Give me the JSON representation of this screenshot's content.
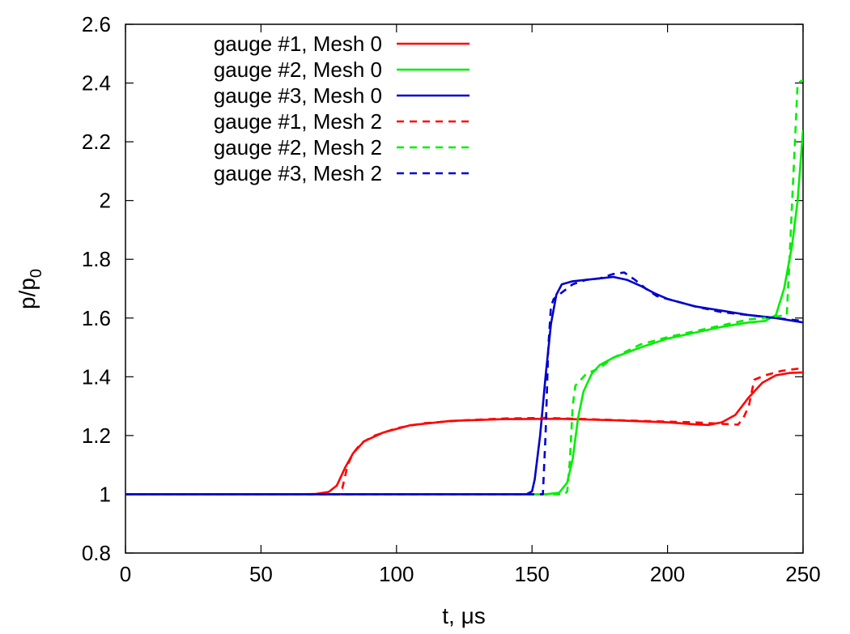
{
  "chart_data": {
    "type": "line",
    "xlabel": "t, μs",
    "ylabel": {
      "base": "p/p",
      "sub": "0"
    },
    "xlim": [
      0,
      250
    ],
    "ylim": [
      0.8,
      2.6
    ],
    "xticks": [
      "0",
      "50",
      "100",
      "150",
      "200",
      "250"
    ],
    "yticks": [
      "0.8",
      "1",
      "1.2",
      "1.4",
      "1.6",
      "1.8",
      "2",
      "2.2",
      "2.4",
      "2.6"
    ],
    "grid": false,
    "legend_position": "top-left",
    "series": [
      {
        "name": "gauge #1, Mesh 0",
        "color": "#ff0000",
        "dash": "solid",
        "points": [
          [
            0,
            1
          ],
          [
            65,
            1
          ],
          [
            70,
            1.001
          ],
          [
            75,
            1.008
          ],
          [
            78,
            1.03
          ],
          [
            81,
            1.09
          ],
          [
            84,
            1.14
          ],
          [
            88,
            1.18
          ],
          [
            95,
            1.21
          ],
          [
            105,
            1.235
          ],
          [
            120,
            1.25
          ],
          [
            140,
            1.256
          ],
          [
            160,
            1.257
          ],
          [
            180,
            1.252
          ],
          [
            200,
            1.245
          ],
          [
            210,
            1.238
          ],
          [
            215,
            1.236
          ],
          [
            220,
            1.245
          ],
          [
            225,
            1.27
          ],
          [
            230,
            1.33
          ],
          [
            235,
            1.38
          ],
          [
            240,
            1.405
          ],
          [
            245,
            1.413
          ],
          [
            250,
            1.415
          ]
        ]
      },
      {
        "name": "gauge #2, Mesh 0",
        "color": "#00ee00",
        "dash": "solid",
        "points": [
          [
            0,
            1
          ],
          [
            155,
            1
          ],
          [
            160,
            1.005
          ],
          [
            163,
            1.04
          ],
          [
            165,
            1.12
          ],
          [
            167,
            1.26
          ],
          [
            169,
            1.35
          ],
          [
            172,
            1.41
          ],
          [
            175,
            1.44
          ],
          [
            180,
            1.465
          ],
          [
            190,
            1.5
          ],
          [
            200,
            1.53
          ],
          [
            210,
            1.55
          ],
          [
            220,
            1.57
          ],
          [
            230,
            1.585
          ],
          [
            236,
            1.59
          ],
          [
            240,
            1.61
          ],
          [
            243,
            1.7
          ],
          [
            246,
            1.85
          ],
          [
            248,
            2.0
          ],
          [
            250,
            2.24
          ]
        ]
      },
      {
        "name": "gauge #3, Mesh 0",
        "color": "#0000cc",
        "dash": "solid",
        "points": [
          [
            0,
            1
          ],
          [
            148,
            1
          ],
          [
            150,
            1.01
          ],
          [
            151,
            1.05
          ],
          [
            153,
            1.2
          ],
          [
            155,
            1.4
          ],
          [
            157,
            1.58
          ],
          [
            159,
            1.68
          ],
          [
            161,
            1.715
          ],
          [
            165,
            1.725
          ],
          [
            170,
            1.73
          ],
          [
            175,
            1.735
          ],
          [
            180,
            1.74
          ],
          [
            185,
            1.73
          ],
          [
            190,
            1.71
          ],
          [
            195,
            1.685
          ],
          [
            200,
            1.665
          ],
          [
            210,
            1.64
          ],
          [
            220,
            1.625
          ],
          [
            230,
            1.61
          ],
          [
            240,
            1.6
          ],
          [
            250,
            1.585
          ]
        ]
      },
      {
        "name": "gauge #1, Mesh 2",
        "color": "#ff0000",
        "dash": "dashed",
        "points": [
          [
            0,
            1
          ],
          [
            79,
            1
          ],
          [
            80,
            1.02
          ],
          [
            82,
            1.1
          ],
          [
            84,
            1.14
          ],
          [
            87,
            1.175
          ],
          [
            92,
            1.2
          ],
          [
            100,
            1.225
          ],
          [
            110,
            1.242
          ],
          [
            125,
            1.252
          ],
          [
            140,
            1.258
          ],
          [
            155,
            1.26
          ],
          [
            170,
            1.256
          ],
          [
            190,
            1.25
          ],
          [
            210,
            1.245
          ],
          [
            220,
            1.24
          ],
          [
            226,
            1.237
          ],
          [
            228,
            1.26
          ],
          [
            230,
            1.3
          ],
          [
            232,
            1.39
          ],
          [
            236,
            1.405
          ],
          [
            242,
            1.42
          ],
          [
            250,
            1.43
          ]
        ]
      },
      {
        "name": "gauge #2, Mesh 2",
        "color": "#00ee00",
        "dash": "dashed",
        "points": [
          [
            0,
            1
          ],
          [
            162,
            1
          ],
          [
            163,
            1.01
          ],
          [
            164,
            1.12
          ],
          [
            165,
            1.3
          ],
          [
            166,
            1.37
          ],
          [
            170,
            1.41
          ],
          [
            175,
            1.43
          ],
          [
            180,
            1.465
          ],
          [
            190,
            1.51
          ],
          [
            200,
            1.535
          ],
          [
            210,
            1.555
          ],
          [
            220,
            1.575
          ],
          [
            230,
            1.595
          ],
          [
            240,
            1.605
          ],
          [
            244,
            1.61
          ],
          [
            245,
            1.8
          ],
          [
            246,
            2.0
          ],
          [
            247,
            2.2
          ],
          [
            248,
            2.4
          ],
          [
            250,
            2.41
          ]
        ]
      },
      {
        "name": "gauge #3, Mesh 2",
        "color": "#0000cc",
        "dash": "dashed",
        "points": [
          [
            0,
            1
          ],
          [
            154,
            1
          ],
          [
            155,
            1.2
          ],
          [
            156,
            1.5
          ],
          [
            157,
            1.64
          ],
          [
            158,
            1.665
          ],
          [
            160,
            1.68
          ],
          [
            165,
            1.715
          ],
          [
            170,
            1.73
          ],
          [
            175,
            1.735
          ],
          [
            180,
            1.75
          ],
          [
            184,
            1.755
          ],
          [
            188,
            1.73
          ],
          [
            192,
            1.7
          ],
          [
            196,
            1.675
          ],
          [
            200,
            1.665
          ],
          [
            210,
            1.64
          ],
          [
            220,
            1.62
          ],
          [
            230,
            1.61
          ],
          [
            240,
            1.6
          ],
          [
            250,
            1.59
          ]
        ]
      }
    ]
  }
}
